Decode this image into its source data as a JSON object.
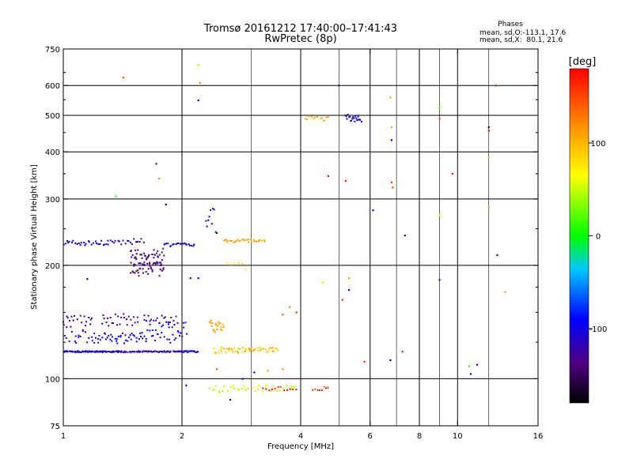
{
  "chart_data": {
    "type": "scatter",
    "title": "Tromsø 20161212 17:40:00–17:41:43",
    "subtitle": "RwPretec (8p)",
    "xlabel": "Frequency [MHz]",
    "ylabel": "Stationary phase Virtual Height [km]",
    "x_scale": "log",
    "y_scale": "log",
    "xlim": [
      1,
      16
    ],
    "ylim": [
      75,
      750
    ],
    "x_ticks": [
      1,
      2,
      4,
      6,
      8,
      10,
      16
    ],
    "x_tick_labels": [
      "1",
      "2",
      "4",
      "6",
      "8",
      "10",
      "16"
    ],
    "y_ticks": [
      75,
      100,
      200,
      300,
      400,
      500,
      600,
      750
    ],
    "y_tick_labels": [
      "75",
      "100",
      "200",
      "300",
      "400",
      "500",
      "600",
      "750"
    ],
    "x_grid_lines": [
      2,
      4,
      6,
      8,
      10
    ],
    "x_minor_grid_lines": [
      3,
      5,
      7,
      9,
      12
    ],
    "y_grid_lines": [
      100,
      200,
      300,
      400,
      500,
      600
    ],
    "y_minor_grid_lines": [
      125,
      150,
      175,
      250,
      350,
      450,
      550,
      650
    ],
    "phase_info": {
      "header": "Phases",
      "line1": "mean, sd,O:-113.1, 17.6",
      "line2": "mean, sd,X:  80.1, 21.6"
    },
    "colorbar": {
      "label": "[deg]",
      "range": [
        -180,
        180
      ],
      "ticks": [
        100,
        0,
        -100
      ],
      "tick_labels": [
        "100",
        "0",
        "-100"
      ]
    },
    "clusters": [
      {
        "x": [
          1.0,
          1.4
        ],
        "y": [
          118,
          118
        ],
        "phase": -105,
        "count": 90,
        "spread": 0.008
      },
      {
        "x": [
          1.4,
          2.0
        ],
        "y": [
          118,
          118
        ],
        "phase": -118,
        "count": 70,
        "spread": 0.008
      },
      {
        "x": [
          2.0,
          2.2
        ],
        "y": [
          118,
          118
        ],
        "phase": -90,
        "count": 20,
        "spread": 0.01
      },
      {
        "x": [
          1.0,
          1.18
        ],
        "y": [
          124,
          150
        ],
        "phase": -110,
        "count": 35,
        "spread": 0.02
      },
      {
        "x": [
          1.18,
          1.55
        ],
        "y": [
          125,
          132
        ],
        "phase": -100,
        "count": 40,
        "spread": 0.03
      },
      {
        "x": [
          1.25,
          1.55
        ],
        "y": [
          138,
          148
        ],
        "phase": -130,
        "count": 25,
        "spread": 0.02
      },
      {
        "x": [
          1.55,
          2.05
        ],
        "y": [
          126,
          142
        ],
        "phase": -95,
        "count": 45,
        "spread": 0.03
      },
      {
        "x": [
          1.6,
          1.95
        ],
        "y": [
          140,
          148
        ],
        "phase": -115,
        "count": 18,
        "spread": 0.015
      },
      {
        "x": [
          1.0,
          1.3
        ],
        "y": [
          226,
          232
        ],
        "phase": -100,
        "count": 28,
        "spread": 0.015
      },
      {
        "x": [
          1.3,
          1.6
        ],
        "y": [
          228,
          235
        ],
        "phase": -110,
        "count": 20,
        "spread": 0.02
      },
      {
        "x": [
          1.48,
          1.8
        ],
        "y": [
          190,
          218
        ],
        "phase": -140,
        "count": 90,
        "spread": 0.04
      },
      {
        "x": [
          1.8,
          2.15
        ],
        "y": [
          225,
          230
        ],
        "phase": -100,
        "count": 22,
        "spread": 0.01
      },
      {
        "x": [
          2.3,
          2.45
        ],
        "y": [
          240,
          290
        ],
        "phase": -105,
        "count": 10,
        "spread": 0.02
      },
      {
        "x": [
          2.55,
          3.25
        ],
        "y": [
          231,
          234
        ],
        "phase": 105,
        "count": 30,
        "spread": 0.01
      },
      {
        "x": [
          2.35,
          2.55
        ],
        "y": [
          133,
          142
        ],
        "phase": 110,
        "count": 20,
        "spread": 0.02
      },
      {
        "x": [
          2.4,
          3.5
        ],
        "y": [
          117,
          121
        ],
        "phase": 95,
        "count": 55,
        "spread": 0.01
      },
      {
        "x": [
          2.35,
          3.9
        ],
        "y": [
          92,
          96
        ],
        "phase": 50,
        "count": 40,
        "spread": 0.015
      },
      {
        "x": [
          3.2,
          3.9
        ],
        "y": [
          93,
          95
        ],
        "phase": 170,
        "count": 12,
        "spread": 0.01
      },
      {
        "x": [
          4.3,
          4.7
        ],
        "y": [
          93,
          95
        ],
        "phase": 155,
        "count": 8,
        "spread": 0.01
      },
      {
        "x": [
          4.1,
          4.7
        ],
        "y": [
          485,
          495
        ],
        "phase": 110,
        "count": 12,
        "spread": 0.02
      },
      {
        "x": [
          5.2,
          5.7
        ],
        "y": [
          480,
          500
        ],
        "phase": -100,
        "count": 20,
        "spread": 0.02
      },
      {
        "x": [
          2.6,
          2.85
        ],
        "y": [
          200,
          205
        ],
        "phase": 80,
        "count": 5,
        "spread": 0.02
      }
    ],
    "points": [
      {
        "x": 1.42,
        "y": 630,
        "phase": 140
      },
      {
        "x": 2.2,
        "y": 680,
        "phase": 40
      },
      {
        "x": 2.22,
        "y": 610,
        "phase": 125
      },
      {
        "x": 2.2,
        "y": 548,
        "phase": -110
      },
      {
        "x": 1.36,
        "y": 305,
        "phase": 10
      },
      {
        "x": 1.75,
        "y": 340,
        "phase": 115
      },
      {
        "x": 1.72,
        "y": 372,
        "phase": -120
      },
      {
        "x": 1.82,
        "y": 290,
        "phase": -100
      },
      {
        "x": 5.0,
        "y": 600,
        "phase": -120
      },
      {
        "x": 4.7,
        "y": 345,
        "phase": 175
      },
      {
        "x": 5.2,
        "y": 335,
        "phase": 165
      },
      {
        "x": 6.75,
        "y": 558,
        "phase": 110
      },
      {
        "x": 6.8,
        "y": 465,
        "phase": 110
      },
      {
        "x": 6.8,
        "y": 430,
        "phase": -100
      },
      {
        "x": 6.8,
        "y": 332,
        "phase": 160
      },
      {
        "x": 6.85,
        "y": 322,
        "phase": 150
      },
      {
        "x": 6.1,
        "y": 280,
        "phase": -110
      },
      {
        "x": 7.35,
        "y": 240,
        "phase": -120
      },
      {
        "x": 9.0,
        "y": 525,
        "phase": 20
      },
      {
        "x": 9.0,
        "y": 490,
        "phase": 140
      },
      {
        "x": 9.0,
        "y": 272,
        "phase": 60
      },
      {
        "x": 9.0,
        "y": 183,
        "phase": -80
      },
      {
        "x": 9.7,
        "y": 350,
        "phase": 170
      },
      {
        "x": 12.0,
        "y": 465,
        "phase": -150
      },
      {
        "x": 12.0,
        "y": 455,
        "phase": 170
      },
      {
        "x": 12.0,
        "y": 386,
        "phase": 40
      },
      {
        "x": 12.0,
        "y": 285,
        "phase": 110
      },
      {
        "x": 12.6,
        "y": 213,
        "phase": -130
      },
      {
        "x": 12.5,
        "y": 600,
        "phase": 170
      },
      {
        "x": 13.2,
        "y": 170,
        "phase": 110
      },
      {
        "x": 4.55,
        "y": 180,
        "phase": 50
      },
      {
        "x": 5.3,
        "y": 185,
        "phase": 110
      },
      {
        "x": 5.3,
        "y": 172,
        "phase": -110
      },
      {
        "x": 5.1,
        "y": 162,
        "phase": 170
      },
      {
        "x": 5.8,
        "y": 111,
        "phase": 160
      },
      {
        "x": 6.75,
        "y": 112,
        "phase": -100
      },
      {
        "x": 7.25,
        "y": 118,
        "phase": 160
      },
      {
        "x": 10.7,
        "y": 108,
        "phase": 10
      },
      {
        "x": 10.8,
        "y": 103,
        "phase": -100
      },
      {
        "x": 11.2,
        "y": 109,
        "phase": -100
      },
      {
        "x": 3.6,
        "y": 148,
        "phase": 130
      },
      {
        "x": 3.75,
        "y": 155,
        "phase": 120
      },
      {
        "x": 3.9,
        "y": 150,
        "phase": 160
      },
      {
        "x": 3.3,
        "y": 105,
        "phase": 110
      },
      {
        "x": 3.6,
        "y": 106,
        "phase": 120
      },
      {
        "x": 2.45,
        "y": 106,
        "phase": 140
      },
      {
        "x": 3.05,
        "y": 104,
        "phase": -100
      },
      {
        "x": 2.85,
        "y": 100,
        "phase": -110
      },
      {
        "x": 2.05,
        "y": 96,
        "phase": -100
      },
      {
        "x": 2.1,
        "y": 185,
        "phase": -110
      },
      {
        "x": 2.2,
        "y": 185,
        "phase": -140
      },
      {
        "x": 2.9,
        "y": 195,
        "phase": 60
      },
      {
        "x": 1.15,
        "y": 184,
        "phase": -100
      },
      {
        "x": 2.65,
        "y": 88,
        "phase": -120
      }
    ]
  }
}
